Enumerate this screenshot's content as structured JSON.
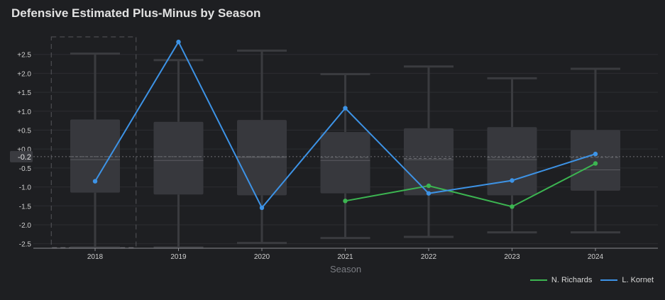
{
  "chart_data": {
    "type": "box+line",
    "title": "Defensive Estimated Plus-Minus by Season",
    "xlabel": "Season",
    "ylabel": "",
    "ylim": [
      -2.6,
      3.0
    ],
    "grid": true,
    "legend_position": "bottom-right",
    "categories": [
      "2018",
      "2019",
      "2020",
      "2021",
      "2022",
      "2023",
      "2024"
    ],
    "y_ticks": [
      {
        "value": 2.5,
        "label": "+2.5"
      },
      {
        "value": 2.0,
        "label": "+2.0"
      },
      {
        "value": 1.5,
        "label": "+1.5"
      },
      {
        "value": 1.0,
        "label": "+1.0"
      },
      {
        "value": 0.5,
        "label": "+0.5"
      },
      {
        "value": 0.0,
        "label": "+0.0"
      },
      {
        "value": -0.5,
        "label": "-0.5"
      },
      {
        "value": -1.0,
        "label": "-1.0"
      },
      {
        "value": -1.5,
        "label": "-1.5"
      },
      {
        "value": -2.0,
        "label": "-2.0"
      },
      {
        "value": -2.5,
        "label": "-2.5"
      }
    ],
    "reference_line": {
      "value": -0.2,
      "label": "-0.2"
    },
    "highlighted_category": "2018",
    "boxes": [
      {
        "category": "2018",
        "min": -2.6,
        "q1": -1.15,
        "median": -0.28,
        "q3": 0.78,
        "max": 2.52,
        "mean": -0.2
      },
      {
        "category": "2019",
        "min": -2.6,
        "q1": -1.2,
        "median": -0.3,
        "q3": 0.72,
        "max": 2.35,
        "mean": -0.2
      },
      {
        "category": "2020",
        "min": -2.48,
        "q1": -1.22,
        "median": -0.22,
        "q3": 0.77,
        "max": 2.6,
        "mean": -0.2
      },
      {
        "category": "2021",
        "min": -2.35,
        "q1": -1.17,
        "median": -0.3,
        "q3": 0.45,
        "max": 1.98,
        "mean": -0.22
      },
      {
        "category": "2022",
        "min": -2.32,
        "q1": -1.22,
        "median": -0.28,
        "q3": 0.55,
        "max": 2.18,
        "mean": -0.25
      },
      {
        "category": "2023",
        "min": -2.2,
        "q1": -1.22,
        "median": -0.28,
        "q3": 0.58,
        "max": 1.87,
        "mean": -0.22
      },
      {
        "category": "2024",
        "min": -2.2,
        "q1": -1.1,
        "median": -0.55,
        "q3": 0.5,
        "max": 2.12,
        "mean": -0.22
      }
    ],
    "series": [
      {
        "name": "N. Richards",
        "color": "#3cb551",
        "x": [
          "2021",
          "2022",
          "2023",
          "2024"
        ],
        "values": [
          -1.37,
          -0.97,
          -1.52,
          -0.38
        ]
      },
      {
        "name": "L. Kornet",
        "color": "#3d93e6",
        "x": [
          "2018",
          "2019",
          "2020",
          "2021",
          "2022",
          "2023",
          "2024"
        ],
        "values": [
          -0.85,
          2.83,
          -1.55,
          1.08,
          -1.17,
          -0.83,
          -0.13
        ]
      }
    ]
  },
  "colors": {
    "background": "#1e1f22",
    "box_fill": "#37383d",
    "whisker": "#3a3b3f",
    "grid": "#2c2d31",
    "axis_text": "#cfcfcf",
    "axis_label": "#7a7c82"
  }
}
